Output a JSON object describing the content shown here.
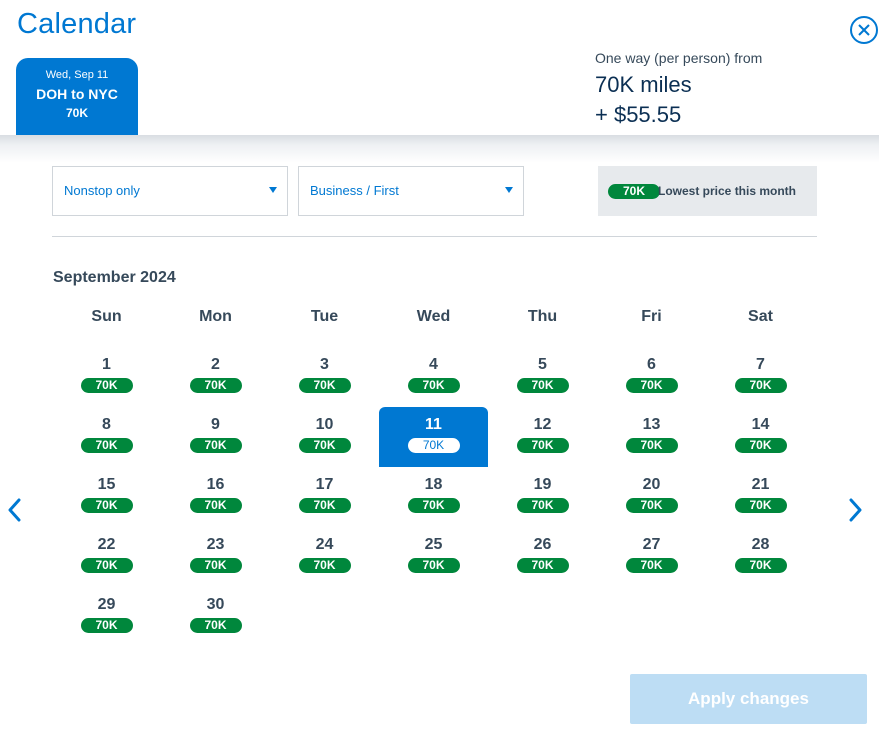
{
  "header": {
    "title": "Calendar",
    "close_icon": "close-circle-icon"
  },
  "trip_tab": {
    "date": "Wed, Sep 11",
    "route": "DOH to NYC",
    "price": "70K"
  },
  "price_summary": {
    "label": "One way (per person) from",
    "miles": "70K miles",
    "cash": "+ $55.55"
  },
  "filters": {
    "stops": {
      "value": "Nonstop only",
      "icon": "caret-down-icon"
    },
    "cabin": {
      "value": "Business / First",
      "icon": "caret-down-icon"
    }
  },
  "legend": {
    "badge": "70K",
    "text": "Lowest price this month"
  },
  "calendar": {
    "month_title": "September 2024",
    "weekdays": [
      "Sun",
      "Mon",
      "Tue",
      "Wed",
      "Thu",
      "Fri",
      "Sat"
    ],
    "first_weekday_index": 0,
    "selected_day": 11,
    "days": [
      {
        "day": "1",
        "price": "70K"
      },
      {
        "day": "2",
        "price": "70K"
      },
      {
        "day": "3",
        "price": "70K"
      },
      {
        "day": "4",
        "price": "70K"
      },
      {
        "day": "5",
        "price": "70K"
      },
      {
        "day": "6",
        "price": "70K"
      },
      {
        "day": "7",
        "price": "70K"
      },
      {
        "day": "8",
        "price": "70K"
      },
      {
        "day": "9",
        "price": "70K"
      },
      {
        "day": "10",
        "price": "70K"
      },
      {
        "day": "11",
        "price": "70K"
      },
      {
        "day": "12",
        "price": "70K"
      },
      {
        "day": "13",
        "price": "70K"
      },
      {
        "day": "14",
        "price": "70K"
      },
      {
        "day": "15",
        "price": "70K"
      },
      {
        "day": "16",
        "price": "70K"
      },
      {
        "day": "17",
        "price": "70K"
      },
      {
        "day": "18",
        "price": "70K"
      },
      {
        "day": "19",
        "price": "70K"
      },
      {
        "day": "20",
        "price": "70K"
      },
      {
        "day": "21",
        "price": "70K"
      },
      {
        "day": "22",
        "price": "70K"
      },
      {
        "day": "23",
        "price": "70K"
      },
      {
        "day": "24",
        "price": "70K"
      },
      {
        "day": "25",
        "price": "70K"
      },
      {
        "day": "26",
        "price": "70K"
      },
      {
        "day": "27",
        "price": "70K"
      },
      {
        "day": "28",
        "price": "70K"
      },
      {
        "day": "29",
        "price": "70K"
      },
      {
        "day": "30",
        "price": "70K"
      }
    ],
    "prev_icon": "chevron-left-icon",
    "next_icon": "chevron-right-icon"
  },
  "actions": {
    "apply_label": "Apply changes"
  },
  "colors": {
    "brand_blue": "#0078d2",
    "navy": "#0b2f53",
    "price_green": "#00873c",
    "text": "#36495a",
    "legend_bg": "#e7eaed",
    "apply_disabled": "#bdddf4"
  }
}
